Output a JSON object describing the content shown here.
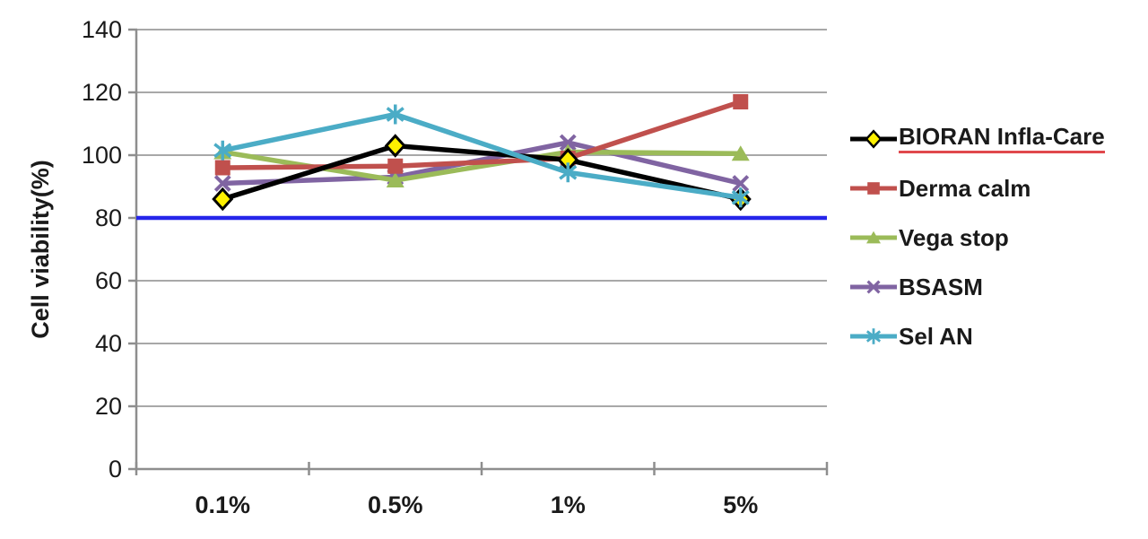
{
  "chart_data": {
    "type": "line",
    "title": "",
    "xlabel": "",
    "ylabel": "Cell viability(%)",
    "categories": [
      "0.1%",
      "0.5%",
      "1%",
      "5%"
    ],
    "ylim": [
      0,
      140
    ],
    "ytick_step": 20,
    "ytick_labels": [
      "0",
      "20",
      "40",
      "60",
      "80",
      "100",
      "120",
      "140"
    ],
    "grid": true,
    "legend_position": "right",
    "reference_line": {
      "value": 80,
      "color": "#2525EA"
    },
    "series": [
      {
        "name": "BIORAN Infla-Care",
        "values": [
          86,
          103,
          98.5,
          86
        ],
        "color": "#000000",
        "marker": "diamond",
        "marker_fill": "#FFF000"
      },
      {
        "name": "Derma calm",
        "values": [
          96,
          96.5,
          99,
          117
        ],
        "color": "#C0504D",
        "marker": "square"
      },
      {
        "name": "Vega stop",
        "values": [
          101,
          92,
          101,
          100.5
        ],
        "color": "#9BBB59",
        "marker": "triangle"
      },
      {
        "name": "BSASM",
        "values": [
          91,
          93,
          104,
          91
        ],
        "color": "#8064A2",
        "marker": "x"
      },
      {
        "name": "Sel AN",
        "values": [
          101.5,
          113,
          94.5,
          86.5
        ],
        "color": "#4BACC6",
        "marker": "asterisk"
      }
    ],
    "draw_order": [
      "BSASM",
      "Vega stop",
      "Derma calm",
      "BIORAN Infla-Care",
      "Sel AN"
    ],
    "legend_annotation": {
      "series": "BIORAN Infla-Care",
      "underline_color": "#E0484D"
    },
    "colors": {
      "gridline": "#A8A8A8",
      "axis": "#8E8E8E",
      "text": "#1A1A1A",
      "background": "#FFFFFF"
    }
  }
}
